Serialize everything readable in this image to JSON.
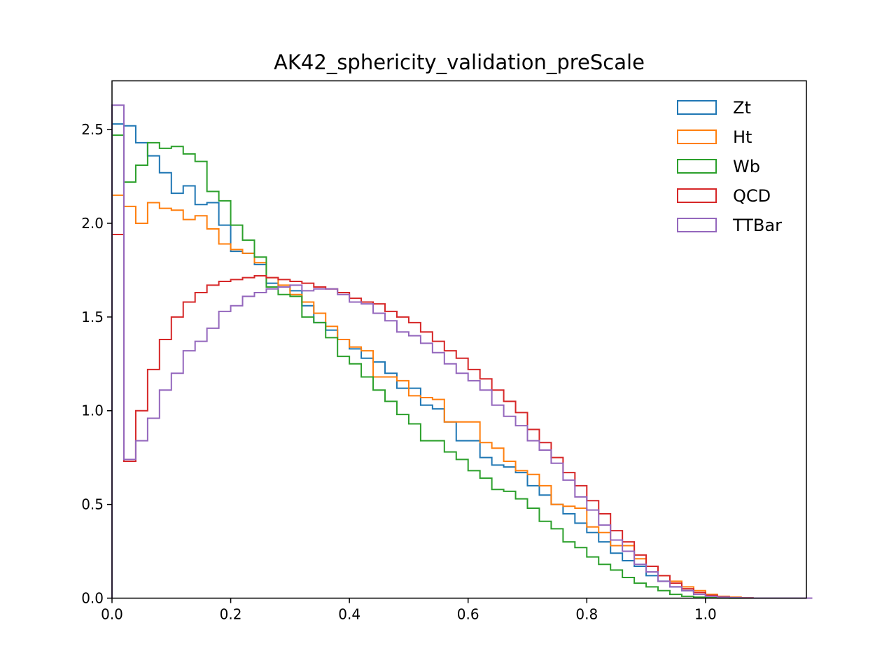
{
  "chart_data": {
    "type": "histogram-step",
    "title": "AK42_sphericity_validation_preScale",
    "xlabel": "",
    "ylabel": "",
    "xlim": [
      0.0,
      1.17
    ],
    "ylim": [
      0.0,
      2.76
    ],
    "grid": false,
    "legend_position": "top-right",
    "x_ticks": [
      "0.0",
      "0.2",
      "0.4",
      "0.6",
      "0.8",
      "1.0"
    ],
    "y_ticks": [
      "0.0",
      "0.5",
      "1.0",
      "1.5",
      "2.0",
      "2.5"
    ],
    "bin_width": 0.02,
    "x_start": 0.0,
    "series": [
      {
        "name": "Zt",
        "color": "#1f77b4",
        "values": [
          2.53,
          2.52,
          2.43,
          2.36,
          2.27,
          2.16,
          2.2,
          2.1,
          2.11,
          1.99,
          1.85,
          1.84,
          1.78,
          1.68,
          1.66,
          1.64,
          1.56,
          1.47,
          1.43,
          1.38,
          1.33,
          1.28,
          1.26,
          1.2,
          1.12,
          1.12,
          1.03,
          1.01,
          0.94,
          0.84,
          0.84,
          0.75,
          0.71,
          0.7,
          0.67,
          0.6,
          0.55,
          0.5,
          0.45,
          0.4,
          0.35,
          0.3,
          0.24,
          0.2,
          0.17,
          0.12,
          0.09,
          0.06,
          0.04,
          0.03,
          0.015,
          0.008,
          0.003,
          0.001,
          0,
          0,
          0,
          0,
          0
        ]
      },
      {
        "name": "Ht",
        "color": "#ff7f0e",
        "values": [
          2.15,
          2.09,
          2.0,
          2.11,
          2.08,
          2.07,
          2.02,
          2.04,
          1.97,
          1.89,
          1.86,
          1.84,
          1.79,
          1.71,
          1.67,
          1.62,
          1.58,
          1.52,
          1.45,
          1.38,
          1.34,
          1.32,
          1.18,
          1.18,
          1.16,
          1.08,
          1.07,
          1.06,
          0.94,
          0.94,
          0.94,
          0.83,
          0.8,
          0.73,
          0.68,
          0.66,
          0.6,
          0.5,
          0.49,
          0.48,
          0.38,
          0.35,
          0.28,
          0.28,
          0.21,
          0.17,
          0.12,
          0.09,
          0.06,
          0.04,
          0.02,
          0.01,
          0.005,
          0.002,
          0,
          0,
          0,
          0,
          0
        ]
      },
      {
        "name": "Wb",
        "color": "#2ca02c",
        "values": [
          2.47,
          2.22,
          2.31,
          2.43,
          2.4,
          2.41,
          2.37,
          2.33,
          2.17,
          2.12,
          1.99,
          1.91,
          1.82,
          1.66,
          1.62,
          1.61,
          1.5,
          1.47,
          1.39,
          1.29,
          1.25,
          1.18,
          1.11,
          1.05,
          0.98,
          0.93,
          0.84,
          0.84,
          0.78,
          0.74,
          0.68,
          0.64,
          0.58,
          0.57,
          0.53,
          0.48,
          0.41,
          0.37,
          0.3,
          0.27,
          0.22,
          0.18,
          0.15,
          0.11,
          0.08,
          0.06,
          0.04,
          0.02,
          0.01,
          0.005,
          0.002,
          0.001,
          0,
          0,
          0,
          0,
          0,
          0,
          0
        ]
      },
      {
        "name": "QCD",
        "color": "#d62728",
        "values": [
          1.94,
          0.73,
          1.0,
          1.22,
          1.38,
          1.5,
          1.58,
          1.63,
          1.67,
          1.69,
          1.7,
          1.71,
          1.72,
          1.71,
          1.7,
          1.69,
          1.68,
          1.66,
          1.65,
          1.63,
          1.6,
          1.58,
          1.57,
          1.53,
          1.5,
          1.47,
          1.42,
          1.37,
          1.32,
          1.28,
          1.22,
          1.17,
          1.11,
          1.05,
          0.99,
          0.9,
          0.83,
          0.75,
          0.67,
          0.6,
          0.52,
          0.45,
          0.36,
          0.3,
          0.23,
          0.17,
          0.12,
          0.08,
          0.05,
          0.03,
          0.015,
          0.007,
          0.003,
          0.001,
          0,
          0,
          0,
          0,
          0
        ]
      },
      {
        "name": "TTBar",
        "color": "#9467bd",
        "values": [
          2.63,
          0.74,
          0.84,
          0.96,
          1.11,
          1.2,
          1.32,
          1.37,
          1.44,
          1.53,
          1.56,
          1.61,
          1.63,
          1.65,
          1.66,
          1.67,
          1.64,
          1.65,
          1.65,
          1.62,
          1.58,
          1.57,
          1.52,
          1.48,
          1.42,
          1.4,
          1.36,
          1.31,
          1.25,
          1.2,
          1.16,
          1.11,
          1.03,
          0.97,
          0.92,
          0.84,
          0.79,
          0.72,
          0.63,
          0.54,
          0.47,
          0.39,
          0.31,
          0.25,
          0.18,
          0.14,
          0.09,
          0.06,
          0.04,
          0.02,
          0.01,
          0.005,
          0.002,
          0.001,
          0,
          0,
          0,
          0,
          0
        ]
      }
    ]
  }
}
